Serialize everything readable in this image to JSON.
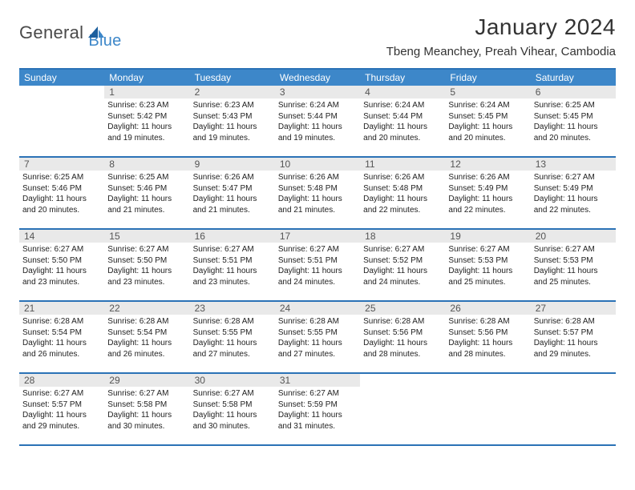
{
  "logo": {
    "text1": "General",
    "text2": "Blue"
  },
  "title": "January 2024",
  "location": "Tbeng Meanchey, Preah Vihear, Cambodia",
  "colors": {
    "header_bg": "#3d87c9",
    "border": "#2b72b6",
    "daynum_bg": "#e9e9e9",
    "text": "#222222"
  },
  "day_headers": [
    "Sunday",
    "Monday",
    "Tuesday",
    "Wednesday",
    "Thursday",
    "Friday",
    "Saturday"
  ],
  "weeks": [
    [
      {
        "num": "",
        "sunrise": "",
        "sunset": "",
        "daylight": ""
      },
      {
        "num": "1",
        "sunrise": "Sunrise: 6:23 AM",
        "sunset": "Sunset: 5:42 PM",
        "daylight": "Daylight: 11 hours and 19 minutes."
      },
      {
        "num": "2",
        "sunrise": "Sunrise: 6:23 AM",
        "sunset": "Sunset: 5:43 PM",
        "daylight": "Daylight: 11 hours and 19 minutes."
      },
      {
        "num": "3",
        "sunrise": "Sunrise: 6:24 AM",
        "sunset": "Sunset: 5:44 PM",
        "daylight": "Daylight: 11 hours and 19 minutes."
      },
      {
        "num": "4",
        "sunrise": "Sunrise: 6:24 AM",
        "sunset": "Sunset: 5:44 PM",
        "daylight": "Daylight: 11 hours and 20 minutes."
      },
      {
        "num": "5",
        "sunrise": "Sunrise: 6:24 AM",
        "sunset": "Sunset: 5:45 PM",
        "daylight": "Daylight: 11 hours and 20 minutes."
      },
      {
        "num": "6",
        "sunrise": "Sunrise: 6:25 AM",
        "sunset": "Sunset: 5:45 PM",
        "daylight": "Daylight: 11 hours and 20 minutes."
      }
    ],
    [
      {
        "num": "7",
        "sunrise": "Sunrise: 6:25 AM",
        "sunset": "Sunset: 5:46 PM",
        "daylight": "Daylight: 11 hours and 20 minutes."
      },
      {
        "num": "8",
        "sunrise": "Sunrise: 6:25 AM",
        "sunset": "Sunset: 5:46 PM",
        "daylight": "Daylight: 11 hours and 21 minutes."
      },
      {
        "num": "9",
        "sunrise": "Sunrise: 6:26 AM",
        "sunset": "Sunset: 5:47 PM",
        "daylight": "Daylight: 11 hours and 21 minutes."
      },
      {
        "num": "10",
        "sunrise": "Sunrise: 6:26 AM",
        "sunset": "Sunset: 5:48 PM",
        "daylight": "Daylight: 11 hours and 21 minutes."
      },
      {
        "num": "11",
        "sunrise": "Sunrise: 6:26 AM",
        "sunset": "Sunset: 5:48 PM",
        "daylight": "Daylight: 11 hours and 22 minutes."
      },
      {
        "num": "12",
        "sunrise": "Sunrise: 6:26 AM",
        "sunset": "Sunset: 5:49 PM",
        "daylight": "Daylight: 11 hours and 22 minutes."
      },
      {
        "num": "13",
        "sunrise": "Sunrise: 6:27 AM",
        "sunset": "Sunset: 5:49 PM",
        "daylight": "Daylight: 11 hours and 22 minutes."
      }
    ],
    [
      {
        "num": "14",
        "sunrise": "Sunrise: 6:27 AM",
        "sunset": "Sunset: 5:50 PM",
        "daylight": "Daylight: 11 hours and 23 minutes."
      },
      {
        "num": "15",
        "sunrise": "Sunrise: 6:27 AM",
        "sunset": "Sunset: 5:50 PM",
        "daylight": "Daylight: 11 hours and 23 minutes."
      },
      {
        "num": "16",
        "sunrise": "Sunrise: 6:27 AM",
        "sunset": "Sunset: 5:51 PM",
        "daylight": "Daylight: 11 hours and 23 minutes."
      },
      {
        "num": "17",
        "sunrise": "Sunrise: 6:27 AM",
        "sunset": "Sunset: 5:51 PM",
        "daylight": "Daylight: 11 hours and 24 minutes."
      },
      {
        "num": "18",
        "sunrise": "Sunrise: 6:27 AM",
        "sunset": "Sunset: 5:52 PM",
        "daylight": "Daylight: 11 hours and 24 minutes."
      },
      {
        "num": "19",
        "sunrise": "Sunrise: 6:27 AM",
        "sunset": "Sunset: 5:53 PM",
        "daylight": "Daylight: 11 hours and 25 minutes."
      },
      {
        "num": "20",
        "sunrise": "Sunrise: 6:27 AM",
        "sunset": "Sunset: 5:53 PM",
        "daylight": "Daylight: 11 hours and 25 minutes."
      }
    ],
    [
      {
        "num": "21",
        "sunrise": "Sunrise: 6:28 AM",
        "sunset": "Sunset: 5:54 PM",
        "daylight": "Daylight: 11 hours and 26 minutes."
      },
      {
        "num": "22",
        "sunrise": "Sunrise: 6:28 AM",
        "sunset": "Sunset: 5:54 PM",
        "daylight": "Daylight: 11 hours and 26 minutes."
      },
      {
        "num": "23",
        "sunrise": "Sunrise: 6:28 AM",
        "sunset": "Sunset: 5:55 PM",
        "daylight": "Daylight: 11 hours and 27 minutes."
      },
      {
        "num": "24",
        "sunrise": "Sunrise: 6:28 AM",
        "sunset": "Sunset: 5:55 PM",
        "daylight": "Daylight: 11 hours and 27 minutes."
      },
      {
        "num": "25",
        "sunrise": "Sunrise: 6:28 AM",
        "sunset": "Sunset: 5:56 PM",
        "daylight": "Daylight: 11 hours and 28 minutes."
      },
      {
        "num": "26",
        "sunrise": "Sunrise: 6:28 AM",
        "sunset": "Sunset: 5:56 PM",
        "daylight": "Daylight: 11 hours and 28 minutes."
      },
      {
        "num": "27",
        "sunrise": "Sunrise: 6:28 AM",
        "sunset": "Sunset: 5:57 PM",
        "daylight": "Daylight: 11 hours and 29 minutes."
      }
    ],
    [
      {
        "num": "28",
        "sunrise": "Sunrise: 6:27 AM",
        "sunset": "Sunset: 5:57 PM",
        "daylight": "Daylight: 11 hours and 29 minutes."
      },
      {
        "num": "29",
        "sunrise": "Sunrise: 6:27 AM",
        "sunset": "Sunset: 5:58 PM",
        "daylight": "Daylight: 11 hours and 30 minutes."
      },
      {
        "num": "30",
        "sunrise": "Sunrise: 6:27 AM",
        "sunset": "Sunset: 5:58 PM",
        "daylight": "Daylight: 11 hours and 30 minutes."
      },
      {
        "num": "31",
        "sunrise": "Sunrise: 6:27 AM",
        "sunset": "Sunset: 5:59 PM",
        "daylight": "Daylight: 11 hours and 31 minutes."
      },
      {
        "num": "",
        "sunrise": "",
        "sunset": "",
        "daylight": ""
      },
      {
        "num": "",
        "sunrise": "",
        "sunset": "",
        "daylight": ""
      },
      {
        "num": "",
        "sunrise": "",
        "sunset": "",
        "daylight": ""
      }
    ]
  ]
}
